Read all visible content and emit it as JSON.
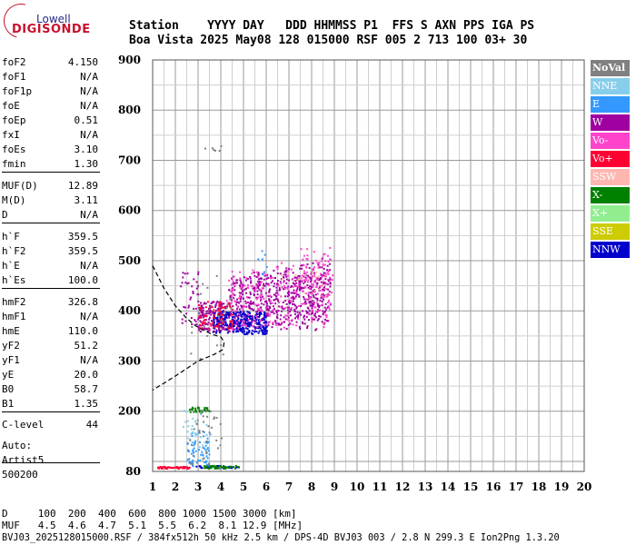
{
  "logo": {
    "top": "Lowell",
    "main": "DIGISONDE"
  },
  "header": {
    "line1": "Station    YYYY DAY   DDD HHMMSS P1  FFS S AXN PPS IGA PS",
    "line2": "Boa Vista 2025 May08 128 015000 RSF 005 2 713 100 03+ 30"
  },
  "params": [
    {
      "k": "foF2",
      "v": "4.150"
    },
    {
      "k": "foF1",
      "v": "N/A"
    },
    {
      "k": "foF1p",
      "v": "N/A"
    },
    {
      "k": "foE",
      "v": "N/A"
    },
    {
      "k": "foEp",
      "v": "0.51"
    },
    {
      "k": "fxI",
      "v": "N/A"
    },
    {
      "k": "foEs",
      "v": "3.10"
    },
    {
      "k": "fmin",
      "v": "1.30"
    },
    {
      "k": "MUF(D)",
      "v": "12.89"
    },
    {
      "k": "M(D)",
      "v": "3.11"
    },
    {
      "k": "D",
      "v": "N/A"
    },
    {
      "k": "h`F",
      "v": "359.5"
    },
    {
      "k": "h`F2",
      "v": "359.5"
    },
    {
      "k": "h`E",
      "v": "N/A"
    },
    {
      "k": "h`Es",
      "v": "100.0"
    },
    {
      "k": "hmF2",
      "v": "326.8"
    },
    {
      "k": "hmF1",
      "v": "N/A"
    },
    {
      "k": "hmE",
      "v": "110.0"
    },
    {
      "k": "yF2",
      "v": "51.2"
    },
    {
      "k": "yF1",
      "v": "N/A"
    },
    {
      "k": "yE",
      "v": "20.0"
    },
    {
      "k": "B0",
      "v": "58.7"
    },
    {
      "k": "B1",
      "v": "1.35"
    },
    {
      "k": "C-level",
      "v": "44"
    }
  ],
  "auto": [
    "Auto:",
    "Artist5",
    "500200"
  ],
  "legend": [
    {
      "label": "NoVal",
      "color": "#808080"
    },
    {
      "label": "NNE",
      "color": "#87ceeb"
    },
    {
      "label": "E",
      "color": "#3399ff"
    },
    {
      "label": "W",
      "color": "#a000a0"
    },
    {
      "label": "Vo-",
      "color": "#ff44cc"
    },
    {
      "label": "Vo+",
      "color": "#ff0033"
    },
    {
      "label": "SSW",
      "color": "#ffb6b0"
    },
    {
      "label": "X-",
      "color": "#008000"
    },
    {
      "label": "X+",
      "color": "#90ee90"
    },
    {
      "label": "SSE",
      "color": "#cccc00"
    },
    {
      "label": "NNW",
      "color": "#0000cc"
    }
  ],
  "footer": {
    "line1": "D     100  200  400  600  800 1000 1500 3000 [km]",
    "line2": "MUF   4.5  4.6  4.7  5.1  5.5  6.2  8.1 12.9 [MHz]",
    "line3": "BVJ03_2025128015000.RSF / 384fx512h 50 kHz 2.5 km / DPS-4D BVJ03 003 / 2.8 N 299.3 E Ion2Png 1.3.20"
  },
  "chart_data": {
    "type": "scatter",
    "xlabel": "",
    "ylabel": "",
    "xlim": [
      1,
      20
    ],
    "ylim": [
      80,
      900
    ],
    "x_ticks": [
      1,
      2,
      3,
      4,
      5,
      6,
      7,
      8,
      9,
      10,
      11,
      12,
      13,
      14,
      15,
      16,
      17,
      18,
      19,
      20
    ],
    "y_ticks": [
      80,
      200,
      300,
      400,
      500,
      600,
      700,
      800,
      900
    ],
    "grid": true,
    "series": [
      {
        "name": "W",
        "color": "#a000a0",
        "clusters": [
          {
            "x": [
              4.3,
              8.8
            ],
            "y": [
              360,
              470
            ],
            "n": 650
          },
          {
            "x": [
              3.0,
              4.2
            ],
            "y": [
              360,
              420
            ],
            "n": 160
          },
          {
            "x": [
              2.2,
              3.0
            ],
            "y": [
              370,
              480
            ],
            "n": 40
          }
        ]
      },
      {
        "name": "NNW",
        "color": "#0000cc",
        "clusters": [
          {
            "x": [
              3.6,
              6.0
            ],
            "y": [
              355,
              400
            ],
            "n": 280
          },
          {
            "x": [
              2.7,
              4.8
            ],
            "y": [
              88,
              93
            ],
            "n": 40
          }
        ]
      },
      {
        "name": "Vo-",
        "color": "#ff44cc",
        "clusters": [
          {
            "x": [
              4.2,
              8.9
            ],
            "y": [
              360,
              480
            ],
            "n": 240
          },
          {
            "x": [
              7.5,
              8.8
            ],
            "y": [
              430,
              530
            ],
            "n": 40
          }
        ]
      },
      {
        "name": "Vo+",
        "color": "#ff0033",
        "clusters": [
          {
            "x": [
              3.0,
              4.5
            ],
            "y": [
              365,
              420
            ],
            "n": 70
          },
          {
            "x": [
              1.2,
              2.6
            ],
            "y": [
              87,
              91
            ],
            "n": 55
          }
        ]
      },
      {
        "name": "E",
        "color": "#3399ff",
        "clusters": [
          {
            "x": [
              2.5,
              3.5
            ],
            "y": [
              90,
              160
            ],
            "n": 70
          },
          {
            "x": [
              5.5,
              6.2
            ],
            "y": [
              470,
              520
            ],
            "n": 8
          }
        ]
      },
      {
        "name": "NNE",
        "color": "#87ceeb",
        "clusters": [
          {
            "x": [
              2.3,
              3.4
            ],
            "y": [
              130,
              210
            ],
            "n": 30
          }
        ]
      },
      {
        "name": "X-",
        "color": "#008000",
        "clusters": [
          {
            "x": [
              2.6,
              3.5
            ],
            "y": [
              200,
              210
            ],
            "n": 30
          },
          {
            "x": [
              3.2,
              4.8
            ],
            "y": [
              87,
              93
            ],
            "n": 45
          }
        ]
      },
      {
        "name": "NoVal",
        "color": "#808080",
        "clusters": [
          {
            "x": [
              2.5,
              4.5
            ],
            "y": [
              300,
              480
            ],
            "n": 25
          },
          {
            "x": [
              2.6,
              4.0
            ],
            "y": [
              88,
              210
            ],
            "n": 35
          },
          {
            "x": [
              3.2,
              4.1
            ],
            "y": [
              720,
              730
            ],
            "n": 6
          }
        ]
      },
      {
        "name": "SSW",
        "color": "#ffb6b0",
        "clusters": [
          {
            "x": [
              6.5,
              8.8
            ],
            "y": [
              420,
              480
            ],
            "n": 25
          }
        ]
      }
    ],
    "profile": {
      "x": [
        1.0,
        1.5,
        2.0,
        2.5,
        2.9,
        3.2,
        3.45,
        3.7,
        4.0,
        4.15,
        4.1,
        3.7,
        3.0,
        2.0,
        1.0
      ],
      "y": [
        490,
        445,
        410,
        385,
        370,
        362,
        357,
        352,
        348,
        338,
        323,
        313,
        300,
        270,
        242
      ]
    }
  }
}
